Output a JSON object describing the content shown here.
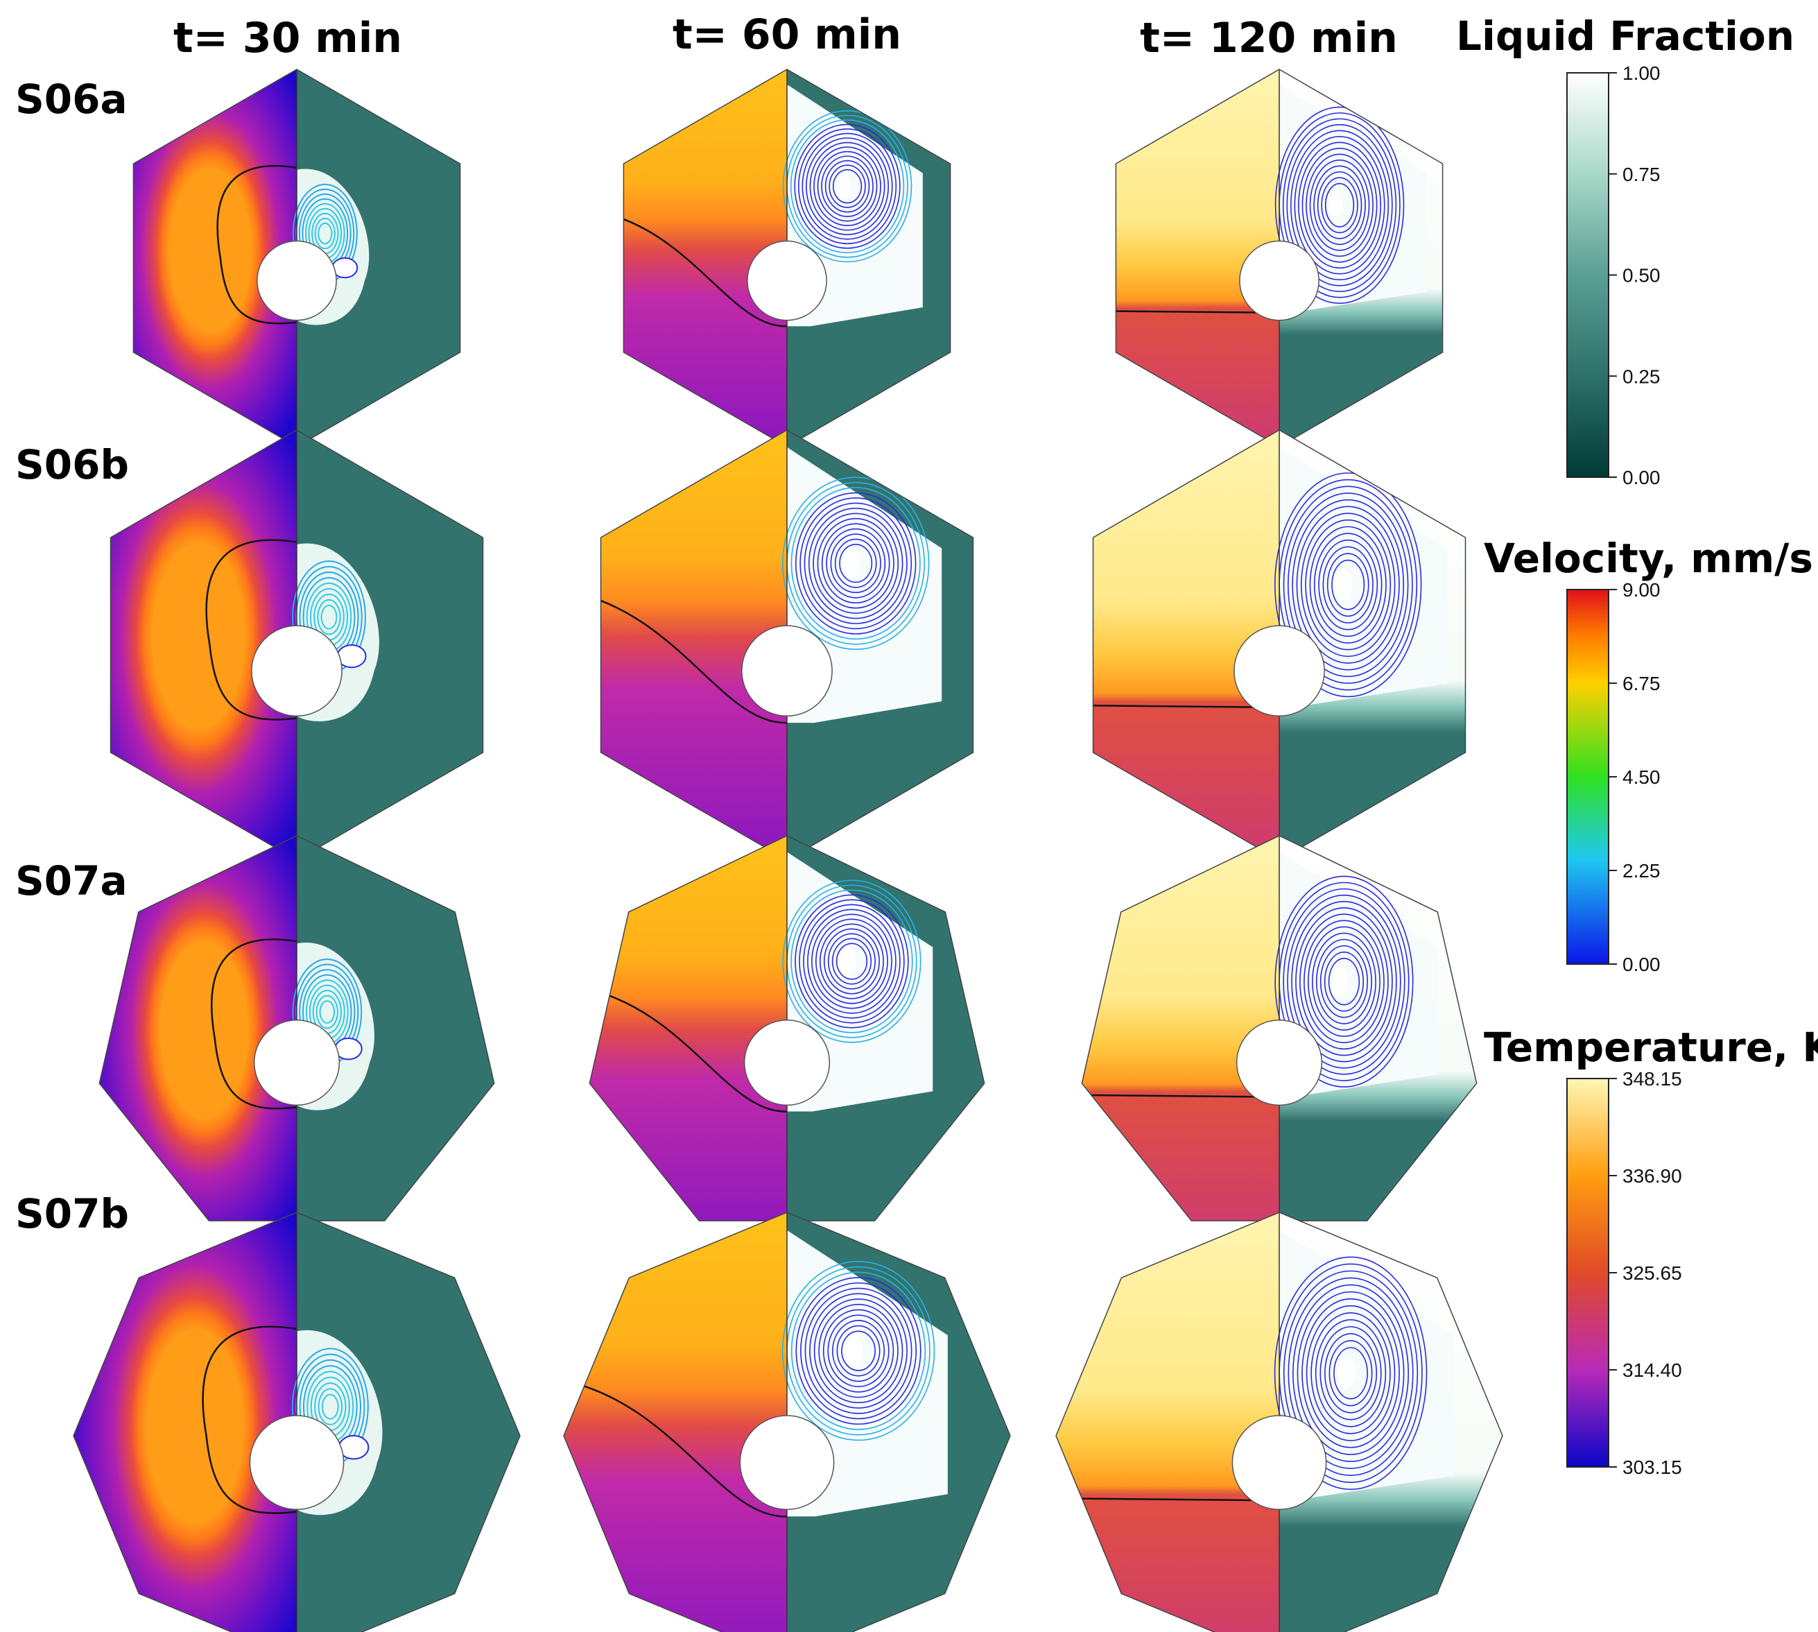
{
  "column_titles": [
    "t= 30 min",
    "t= 60 min",
    "t= 120 min"
  ],
  "row_labels": [
    "S06a",
    "S06b",
    "S07a",
    "S07b"
  ],
  "panel_rows": [
    {
      "label": "S06a",
      "sides": 6
    },
    {
      "label": "S06b",
      "sides": 6
    },
    {
      "label": "S07a",
      "sides": 7
    },
    {
      "label": "S07b",
      "sides": 8
    }
  ],
  "colorbars": {
    "liquid_fraction": {
      "title": "Liquid Fraction",
      "ticks": [
        "1.00",
        "0.75",
        "0.50",
        "0.25",
        "0.00"
      ],
      "colors": [
        "#ffffff",
        "#a8d8c8",
        "#5a9f94",
        "#2e706a",
        "#003b36"
      ]
    },
    "velocity": {
      "title": "Velocity, mm/s",
      "ticks": [
        "9.00",
        "6.75",
        "4.50",
        "2.25",
        "0.00"
      ],
      "colors": [
        "#e0101a",
        "#ffd000",
        "#30e020",
        "#20c8f0",
        "#0a16e8"
      ]
    },
    "temperature": {
      "title": "Temperature, K",
      "ticks": [
        "348.15",
        "336.90",
        "325.65",
        "314.40",
        "303.15"
      ],
      "colors": [
        "#fff6b5",
        "#ff9e10",
        "#e04a28",
        "#b82ab8",
        "#0a06c8"
      ]
    }
  },
  "colors": {
    "solid_green": "#33736e",
    "streamline": "#2a2ae0",
    "interface": "#111111"
  }
}
